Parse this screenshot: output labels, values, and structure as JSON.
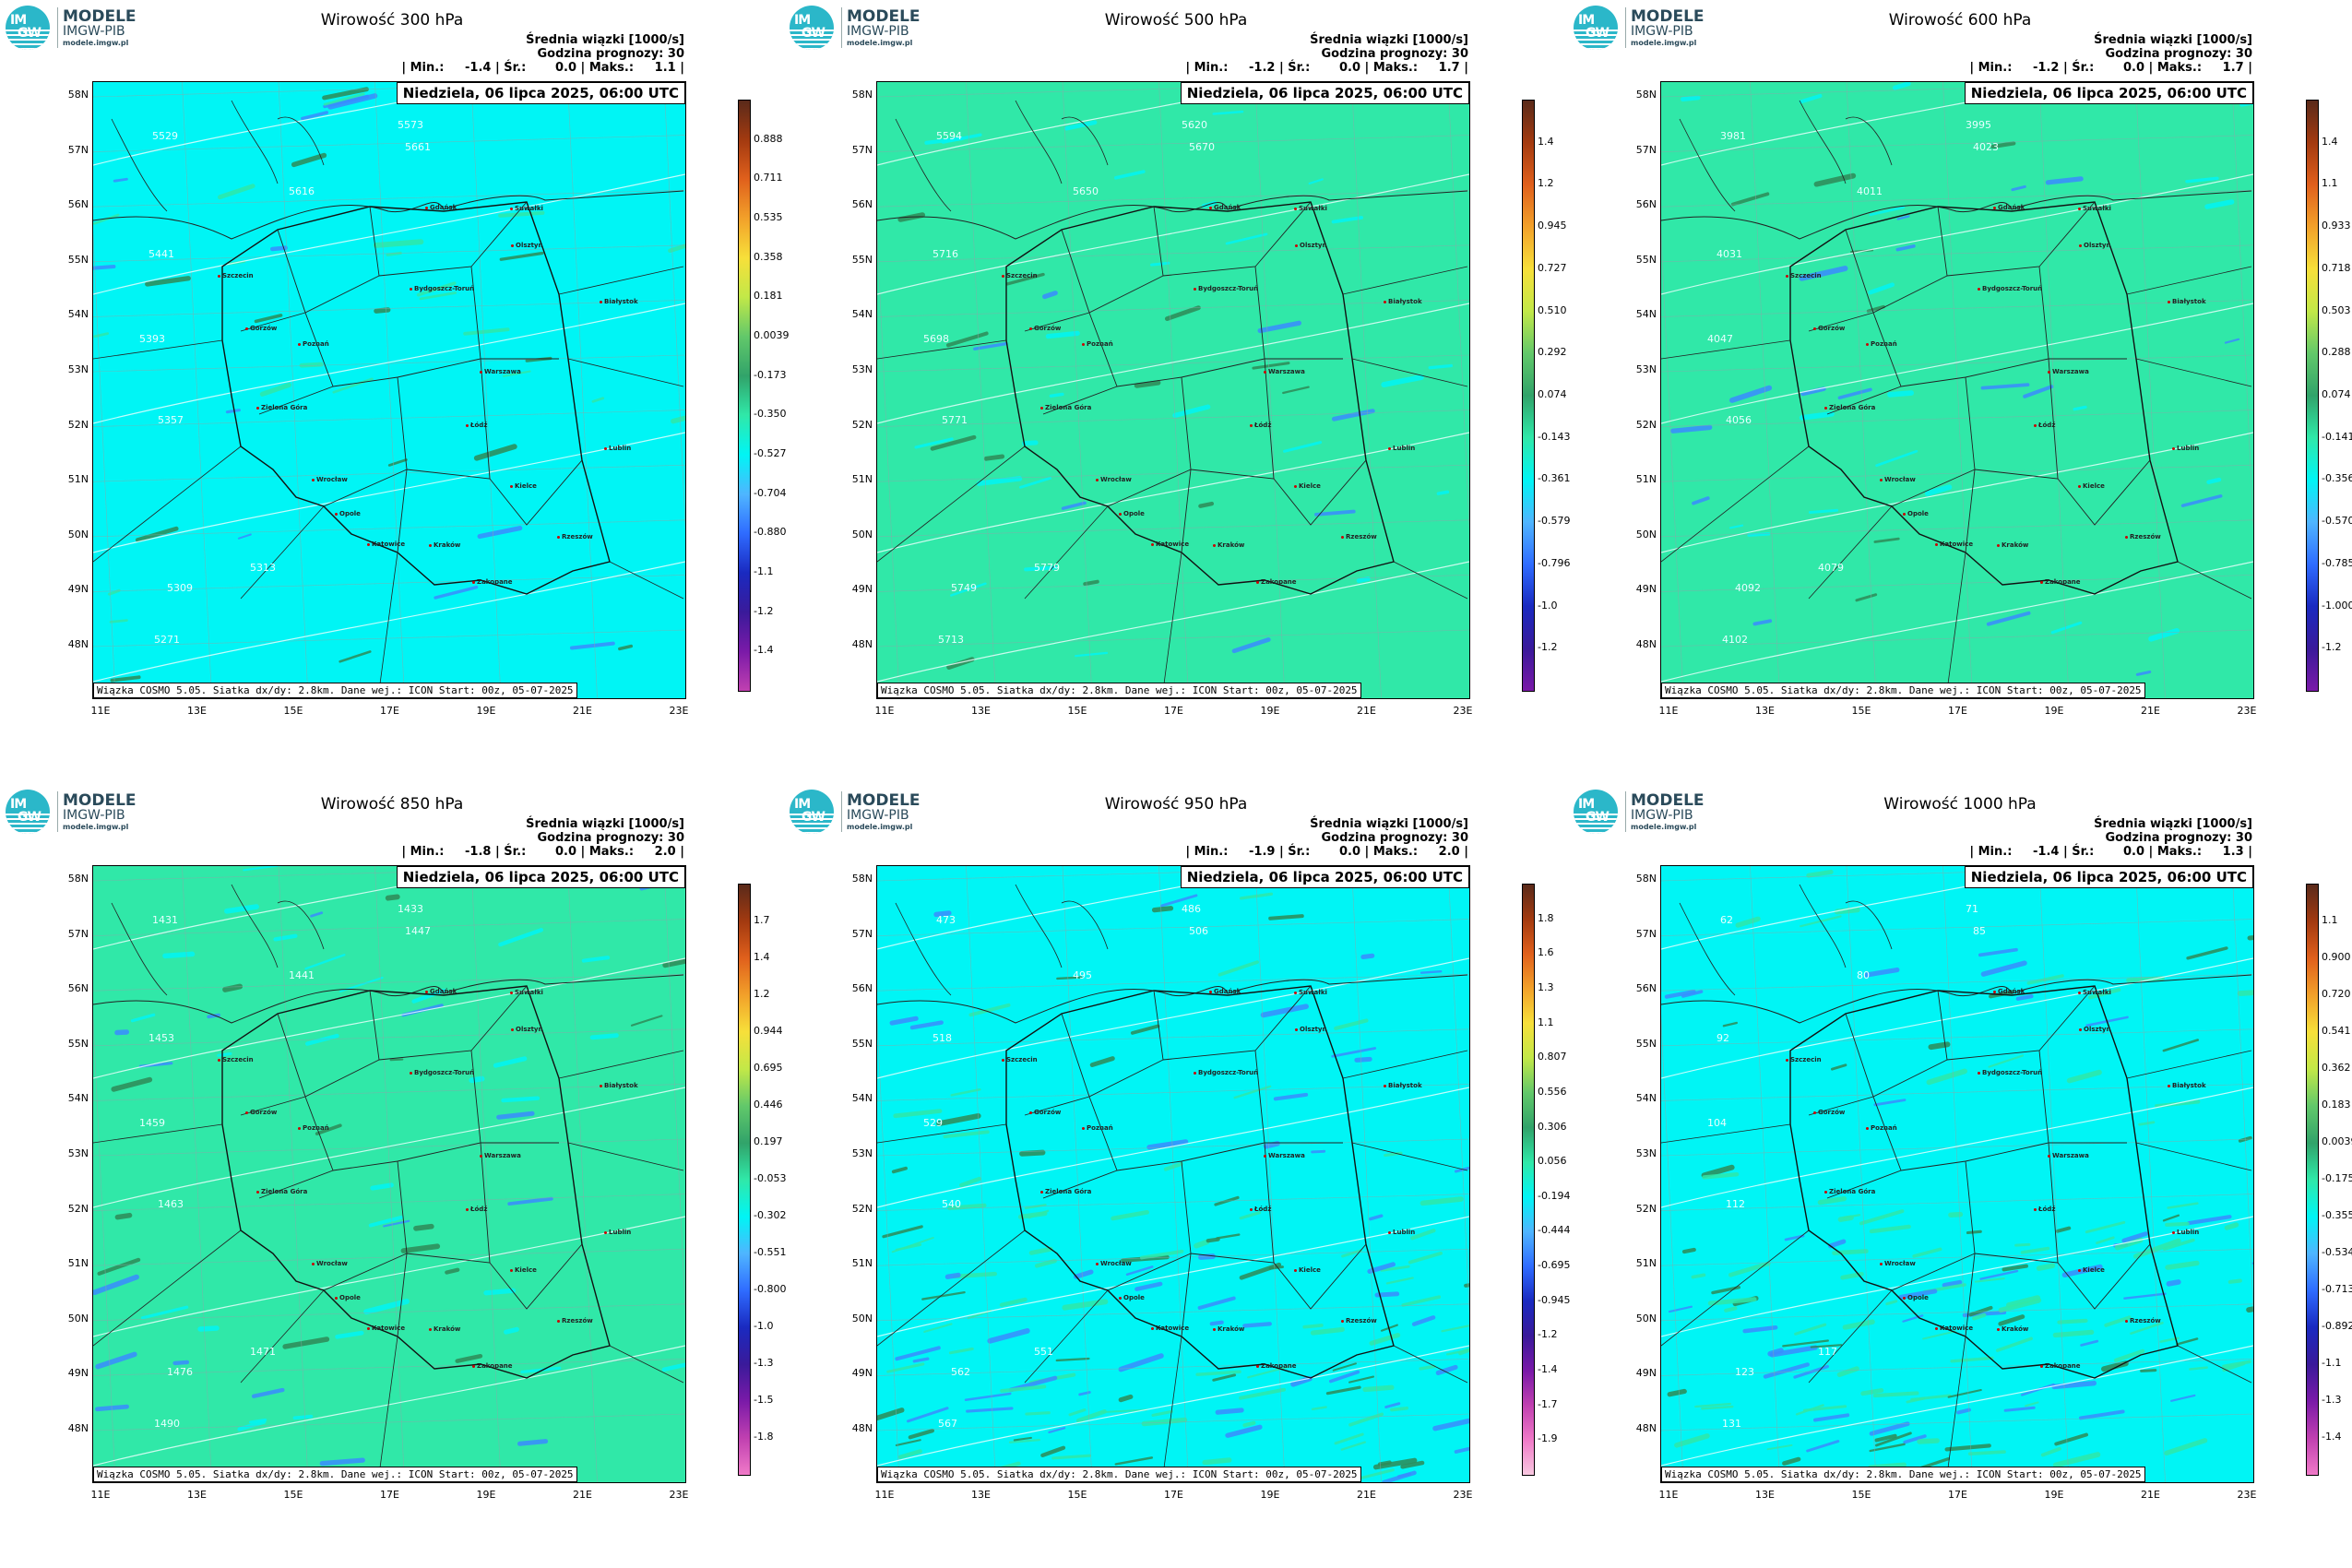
{
  "logo": {
    "line1": "MODELE",
    "line2": "IMGW-PIB",
    "line3": "modele.imgw.pl",
    "letters_top": "IM",
    "letters_bottom": "GW"
  },
  "info": {
    "line1": "Średnia wiązki [1000/s]",
    "line2": "Godzina prognozy: 30"
  },
  "date": "Niedziela, 06 lipca 2025, 06:00 UTC",
  "credit": "Wiązka COSMO 5.05. Siatka dx/dy: 2.8km. Dane wej.: ICON Start: 00z, 05-07-2025",
  "lat_labels": [
    "58N",
    "57N",
    "56N",
    "55N",
    "54N",
    "53N",
    "52N",
    "51N",
    "50N",
    "49N",
    "48N"
  ],
  "lon_labels": [
    "11E",
    "13E",
    "15E",
    "17E",
    "19E",
    "21E",
    "23E"
  ],
  "cities": [
    "Gdańsk",
    "Suwałki",
    "Olsztyn",
    "Szczecin",
    "Bydgoszcz-Toruń",
    "Białystok",
    "Gorzów",
    "Poznań",
    "Warszawa",
    "Zielona Góra",
    "Łódź",
    "Lublin",
    "Wrocław",
    "Kielce",
    "Opole",
    "Rzeszów",
    "Katowice",
    "Kraków",
    "Zakopane"
  ],
  "colors": {
    "cyan": "#00f5f5",
    "green": "#30e8a8",
    "dark_green": "#2e8b57",
    "blue": "#3a8cff"
  },
  "panels": [
    {
      "title": "Wirowość 300 hPa",
      "stats": "| Min.:     -1.4 | Śr.:       0.0 | Maks.:     1.1 |",
      "background": "cyan",
      "colorbar": [
        "0.888",
        "0.711",
        "0.535",
        "0.358",
        "0.181",
        "0.0039",
        "-0.173",
        "-0.350",
        "-0.527",
        "-0.704",
        "-0.880",
        "-1.1",
        "-1.2",
        "-1.4"
      ],
      "height_labels": [
        "5529",
        "5573",
        "5616",
        "5661",
        "5441",
        "5393",
        "5357",
        "5313",
        "5309",
        "5271"
      ]
    },
    {
      "title": "Wirowość 500 hPa",
      "stats": "| Min.:     -1.2 | Śr.:       0.0 | Maks.:     1.7 |",
      "background": "green",
      "colorbar": [
        "1.4",
        "1.2",
        "0.945",
        "0.727",
        "0.510",
        "0.292",
        "0.074",
        "-0.143",
        "-0.361",
        "-0.579",
        "-0.796",
        "-1.0",
        "-1.2"
      ],
      "height_labels": [
        "5594",
        "5620",
        "5650",
        "5670",
        "5716",
        "5698",
        "5771",
        "5779",
        "5749",
        "5713"
      ]
    },
    {
      "title": "Wirowość 600 hPa",
      "stats": "| Min.:     -1.2 | Śr.:       0.0 | Maks.:     1.7 |",
      "background": "green",
      "colorbar": [
        "1.4",
        "1.1",
        "0.933",
        "0.718",
        "0.503",
        "0.288",
        "0.074",
        "-0.141",
        "-0.356",
        "-0.570",
        "-0.785",
        "-1.000",
        "-1.2"
      ],
      "height_labels": [
        "3981",
        "3995",
        "4011",
        "4023",
        "4031",
        "4047",
        "4056",
        "4079",
        "4092",
        "4102"
      ]
    },
    {
      "title": "Wirowość 850 hPa",
      "stats": "| Min.:     -1.8 | Śr.:       0.0 | Maks.:     2.0 |",
      "background": "green",
      "colorbar": [
        "1.7",
        "1.4",
        "1.2",
        "0.944",
        "0.695",
        "0.446",
        "0.197",
        "-0.053",
        "-0.302",
        "-0.551",
        "-0.800",
        "-1.0",
        "-1.3",
        "-1.5",
        "-1.8"
      ],
      "height_labels": [
        "1431",
        "1433",
        "1441",
        "1447",
        "1453",
        "1459",
        "1463",
        "1471",
        "1476",
        "1490"
      ]
    },
    {
      "title": "Wirowość 950 hPa",
      "stats": "| Min.:     -1.9 | Śr.:       0.0 | Maks.:     2.0 |",
      "background": "cyan",
      "colorbar": [
        "1.8",
        "1.6",
        "1.3",
        "1.1",
        "0.807",
        "0.556",
        "0.306",
        "0.056",
        "-0.194",
        "-0.444",
        "-0.695",
        "-0.945",
        "-1.2",
        "-1.4",
        "-1.7",
        "-1.9"
      ],
      "height_labels": [
        "473",
        "486",
        "495",
        "506",
        "518",
        "529",
        "540",
        "551",
        "562",
        "567"
      ]
    },
    {
      "title": "Wirowość 1000 hPa",
      "stats": "| Min.:     -1.4 | Śr.:       0.0 | Maks.:     1.3 |",
      "background": "cyan",
      "colorbar": [
        "1.1",
        "0.900",
        "0.720",
        "0.541",
        "0.362",
        "0.183",
        "0.0039",
        "-0.175",
        "-0.355",
        "-0.534",
        "-0.713",
        "-0.892",
        "-1.1",
        "-1.3",
        "-1.4"
      ],
      "height_labels": [
        "62",
        "71",
        "80",
        "85",
        "92",
        "104",
        "112",
        "117",
        "123",
        "131"
      ]
    }
  ]
}
